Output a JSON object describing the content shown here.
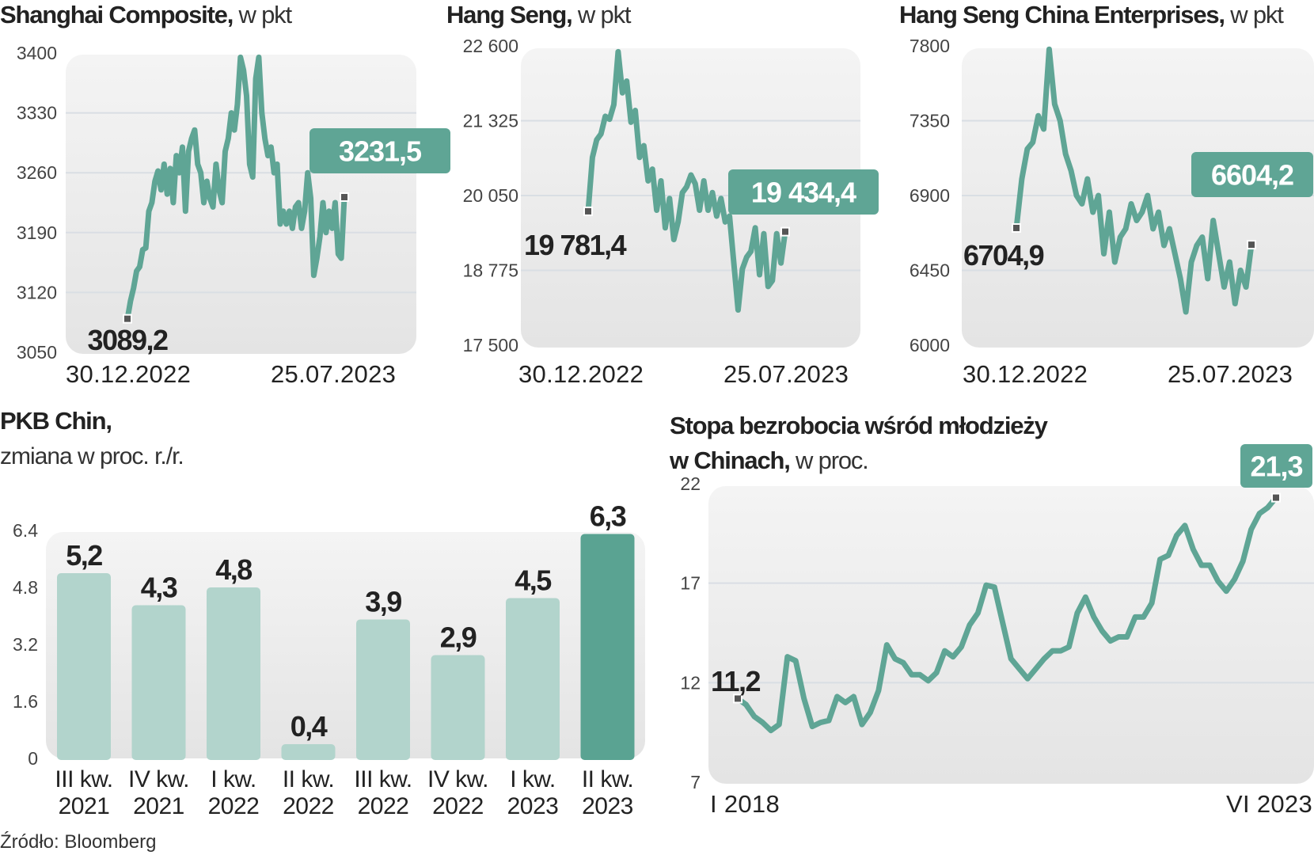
{
  "colors": {
    "line": "#5fa595",
    "bar_light": "#b2d4cc",
    "bar_dark": "#5aa392",
    "marker": "#555555",
    "grid": "#d9dee4"
  },
  "source": "Źródło: Bloomberg",
  "chart_data": [
    {
      "type": "line",
      "title": "Shanghai Composite,",
      "unit": " w pkt",
      "yticks": [
        "3400",
        "3330",
        "3260",
        "3190",
        "3120",
        "3050"
      ],
      "ytick_values": [
        3400,
        3330,
        3260,
        3190,
        3120,
        3050
      ],
      "ylim": [
        3050,
        3400
      ],
      "x_labels": [
        "30.12.2022",
        "25.07.2023"
      ],
      "start_label": "3089,2",
      "end_label": "3231,5",
      "values": [
        3089.2,
        3110,
        3125,
        3145,
        3150,
        3170,
        3172,
        3215,
        3225,
        3250,
        3262,
        3240,
        3270,
        3235,
        3265,
        3225,
        3280,
        3260,
        3290,
        3215,
        3285,
        3300,
        3310,
        3270,
        3260,
        3225,
        3250,
        3230,
        3220,
        3270,
        3240,
        3225,
        3285,
        3300,
        3330,
        3310,
        3340,
        3395,
        3380,
        3350,
        3270,
        3255,
        3370,
        3395,
        3330,
        3300,
        3280,
        3290,
        3260,
        3270,
        3200,
        3215,
        3200,
        3215,
        3195,
        3220,
        3225,
        3195,
        3215,
        3260,
        3230,
        3140,
        3160,
        3185,
        3225,
        3190,
        3215,
        3195,
        3225,
        3165,
        3160,
        3231.5
      ]
    },
    {
      "type": "line",
      "title": "Hang Seng,",
      "unit": " w pkt",
      "yticks": [
        "22 600",
        "21 325",
        "20 050",
        "18 775",
        "17 500"
      ],
      "ytick_values": [
        22600,
        21325,
        20050,
        18775,
        17500
      ],
      "ylim": [
        17500,
        22600
      ],
      "x_labels": [
        "30.12.2022",
        "25.07.2023"
      ],
      "start_label": "19 781,4",
      "end_label": "19 434,4",
      "values": [
        19781.4,
        20700,
        21000,
        21100,
        21400,
        21350,
        21600,
        22500,
        21800,
        22000,
        21300,
        21500,
        20700,
        20900,
        20300,
        20500,
        19800,
        20300,
        19500,
        20000,
        19300,
        19600,
        20100,
        20200,
        20400,
        20250,
        19800,
        20300,
        19800,
        20100,
        19700,
        20000,
        19600,
        19700,
        18900,
        18100,
        18800,
        19000,
        19100,
        19500,
        18700,
        19400,
        18500,
        18600,
        19400,
        18900,
        19434.4
      ]
    },
    {
      "type": "line",
      "title": "Hang Seng China Enterprises,",
      "unit": " w pkt",
      "yticks": [
        "7800",
        "7350",
        "6900",
        "6450",
        "6000"
      ],
      "ytick_values": [
        7800,
        7350,
        6900,
        6450,
        6000
      ],
      "ylim": [
        6000,
        7800
      ],
      "x_labels": [
        "30.12.2022",
        "25.07.2023"
      ],
      "start_label": "6704,9",
      "end_label": "6604,2",
      "values": [
        6704.9,
        7000,
        7180,
        7220,
        7380,
        7300,
        7780,
        7450,
        7350,
        7150,
        7050,
        6900,
        6850,
        7000,
        6800,
        6900,
        6550,
        6800,
        6500,
        6650,
        6700,
        6850,
        6750,
        6800,
        6900,
        6700,
        6800,
        6600,
        6700,
        6550,
        6400,
        6200,
        6500,
        6600,
        6650,
        6400,
        6750,
        6550,
        6350,
        6500,
        6250,
        6450,
        6350,
        6604.2
      ]
    },
    {
      "type": "bar",
      "title": "PKB Chin,",
      "subtitle": "zmiana w proc. r./r.",
      "yticks": [
        "6.4",
        "4.8",
        "3.2",
        "1.6",
        "0"
      ],
      "ytick_values": [
        6.4,
        4.8,
        3.2,
        1.6,
        0
      ],
      "ylim": [
        0,
        6.4
      ],
      "categories": [
        [
          "III kw.",
          "2021"
        ],
        [
          "IV kw.",
          "2021"
        ],
        [
          "I kw.",
          "2022"
        ],
        [
          "II kw.",
          "2022"
        ],
        [
          "III kw.",
          "2022"
        ],
        [
          "IV kw.",
          "2022"
        ],
        [
          "I kw.",
          "2023"
        ],
        [
          "II kw.",
          "2023"
        ]
      ],
      "values": [
        5.2,
        4.3,
        4.8,
        0.4,
        3.9,
        2.9,
        4.5,
        6.3
      ],
      "value_labels": [
        "5,2",
        "4,3",
        "4,8",
        "0,4",
        "3,9",
        "2,9",
        "4,5",
        "6,3"
      ],
      "highlight_last": true
    },
    {
      "type": "line",
      "title": "Stopa bezrobocia wśród młodzieży",
      "title2": "w Chinach,",
      "unit": " w proc.",
      "yticks": [
        "22",
        "17",
        "12",
        "7"
      ],
      "ytick_values": [
        22,
        17,
        12,
        7
      ],
      "ylim": [
        7,
        22
      ],
      "x_labels": [
        "I 2018",
        "VI 2023"
      ],
      "start_label": "11,2",
      "end_label": "21,3",
      "values": [
        11.2,
        10.9,
        10.3,
        10.0,
        9.6,
        9.9,
        13.3,
        13.1,
        11.2,
        9.8,
        10.0,
        10.1,
        11.3,
        11.0,
        11.3,
        9.9,
        10.5,
        11.6,
        13.9,
        13.2,
        13.0,
        12.4,
        12.4,
        12.1,
        12.5,
        13.6,
        13.3,
        13.8,
        14.9,
        15.5,
        16.9,
        16.8,
        15.0,
        13.2,
        12.7,
        12.2,
        12.7,
        13.2,
        13.6,
        13.6,
        13.8,
        15.5,
        16.3,
        15.3,
        14.6,
        14.1,
        14.3,
        14.3,
        15.3,
        15.3,
        16.0,
        18.2,
        18.4,
        19.4,
        19.9,
        18.7,
        17.9,
        17.9,
        17.1,
        16.6,
        17.2,
        18.1,
        19.7,
        20.5,
        20.8,
        21.3
      ]
    }
  ]
}
